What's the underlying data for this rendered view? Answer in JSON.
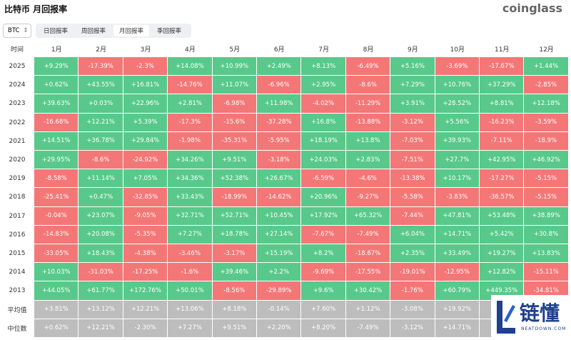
{
  "header": {
    "title": "比特币 月回报率",
    "brand": "coinglass"
  },
  "controls": {
    "selector": "BTC",
    "tabs": [
      "日回报率",
      "周回报率",
      "月回报率",
      "季回报率"
    ],
    "active_tab": 2
  },
  "table": {
    "columns": [
      "时间",
      "1月",
      "2月",
      "3月",
      "4月",
      "5月",
      "6月",
      "7月",
      "8月",
      "9月",
      "10月",
      "11月",
      "12月"
    ],
    "rows": [
      [
        "2025",
        "+9.29%",
        "-17.39%",
        "-2.3%",
        "+14.08%",
        "+10.99%",
        "+2.49%",
        "+8.13%",
        "-6.49%",
        "+5.16%",
        "-3.69%",
        "-17.67%",
        "+1.44%"
      ],
      [
        "2024",
        "+0.62%",
        "+43.55%",
        "+16.81%",
        "-14.76%",
        "+11.07%",
        "-6.96%",
        "+2.95%",
        "-8.6%",
        "+7.29%",
        "+10.76%",
        "+37.29%",
        "-2.85%"
      ],
      [
        "2023",
        "+39.63%",
        "+0.03%",
        "+22.96%",
        "+2.81%",
        "-6.98%",
        "+11.98%",
        "-4.02%",
        "-11.29%",
        "+3.91%",
        "+28.52%",
        "+8.81%",
        "+12.18%"
      ],
      [
        "2022",
        "-16.68%",
        "+12.21%",
        "+5.39%",
        "-17.3%",
        "-15.6%",
        "-37.28%",
        "+16.8%",
        "-13.88%",
        "-3.12%",
        "+5.56%",
        "-16.23%",
        "-3.59%"
      ],
      [
        "2021",
        "+14.51%",
        "+36.78%",
        "+29.84%",
        "-1.98%",
        "-35.31%",
        "-5.95%",
        "+18.19%",
        "+13.8%",
        "-7.03%",
        "+39.93%",
        "-7.11%",
        "-18.9%"
      ],
      [
        "2020",
        "+29.95%",
        "-8.6%",
        "-24.92%",
        "+34.26%",
        "+9.51%",
        "-3.18%",
        "+24.03%",
        "+2.83%",
        "-7.51%",
        "+27.7%",
        "+42.95%",
        "+46.92%"
      ],
      [
        "2019",
        "-8.58%",
        "+11.14%",
        "+7.05%",
        "+34.36%",
        "+52.38%",
        "+26.67%",
        "-6.59%",
        "-4.6%",
        "-13.38%",
        "+10.17%",
        "-17.27%",
        "-5.15%"
      ],
      [
        "2018",
        "-25.41%",
        "+0.47%",
        "-32.85%",
        "+33.43%",
        "-18.99%",
        "-14.62%",
        "+20.96%",
        "-9.27%",
        "-5.58%",
        "-3.83%",
        "-36.57%",
        "-5.15%"
      ],
      [
        "2017",
        "-0.04%",
        "+23.07%",
        "-9.05%",
        "+32.71%",
        "+52.71%",
        "+10.45%",
        "+17.92%",
        "+65.32%",
        "-7.44%",
        "+47.81%",
        "+53.48%",
        "+38.89%"
      ],
      [
        "2016",
        "-14.83%",
        "+20.08%",
        "-5.35%",
        "+7.27%",
        "+18.78%",
        "+27.14%",
        "-7.67%",
        "-7.49%",
        "+6.04%",
        "+14.71%",
        "+5.42%",
        "+30.8%"
      ],
      [
        "2015",
        "-33.05%",
        "+18.43%",
        "-4.38%",
        "-3.46%",
        "-3.17%",
        "+15.19%",
        "+8.2%",
        "-18.67%",
        "+2.35%",
        "+33.49%",
        "+19.27%",
        "+13.83%"
      ],
      [
        "2014",
        "+10.03%",
        "-31.03%",
        "-17.25%",
        "-1.6%",
        "+39.46%",
        "+2.2%",
        "-9.69%",
        "-17.55%",
        "-19.01%",
        "-12.95%",
        "+12.82%",
        "-15.11%"
      ],
      [
        "2013",
        "+44.05%",
        "+61.77%",
        "+172.76%",
        "+50.01%",
        "-8.56%",
        "-29.89%",
        "+9.6%",
        "+30.42%",
        "-1.76%",
        "+60.79%",
        "+449.35%",
        "-34.81%"
      ]
    ],
    "summary_rows": [
      [
        "平均值",
        "+3.81%",
        "+13.12%",
        "+12.21%",
        "+13.06%",
        "+8.18%",
        "-0.14%",
        "+7.60%",
        "+1.12%",
        "-3.08%",
        "+19.92%",
        null,
        null
      ],
      [
        "中位数",
        "+0.62%",
        "+12.21%",
        "-2.30%",
        "+7.27%",
        "+9.51%",
        "+2.20%",
        "+8.20%",
        "-7.49%",
        "-3.12%",
        "+14.71%",
        null,
        null
      ]
    ]
  },
  "watermark": {
    "text": "链懂",
    "url": "NEATDOWN.COM"
  }
}
